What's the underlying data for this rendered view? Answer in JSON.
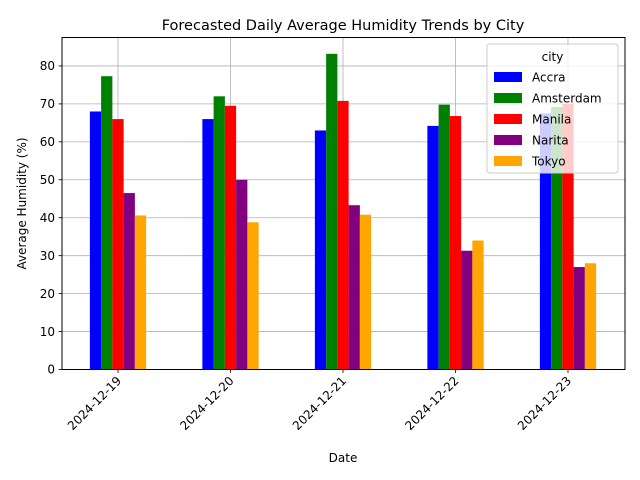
{
  "chart_data": {
    "type": "bar",
    "title": "Forecasted Daily Average Humidity Trends by City",
    "xlabel": "Date",
    "ylabel": "Average Humidity (%)",
    "categories": [
      "2024-12-19",
      "2024-12-20",
      "2024-12-21",
      "2024-12-22",
      "2024-12-23"
    ],
    "ylim": [
      0,
      87.5
    ],
    "yticks": [
      0,
      10,
      20,
      30,
      40,
      50,
      60,
      70,
      80
    ],
    "grid": true,
    "legend": {
      "title": "city",
      "placement": "top-right"
    },
    "series": [
      {
        "name": "Accra",
        "color": "#0000ff",
        "values": [
          68.0,
          66.0,
          63.0,
          64.2,
          67.5
        ]
      },
      {
        "name": "Amsterdam",
        "color": "#008000",
        "values": [
          77.3,
          72.0,
          83.2,
          69.8,
          69.2
        ]
      },
      {
        "name": "Manila",
        "color": "#ff0000",
        "values": [
          66.0,
          69.5,
          70.8,
          66.8,
          70.0
        ]
      },
      {
        "name": "Narita",
        "color": "#800080",
        "values": [
          46.5,
          50.0,
          43.3,
          31.3,
          27.0
        ]
      },
      {
        "name": "Tokyo",
        "color": "#ffa500",
        "values": [
          40.6,
          38.8,
          40.8,
          34.0,
          28.0
        ]
      }
    ]
  }
}
